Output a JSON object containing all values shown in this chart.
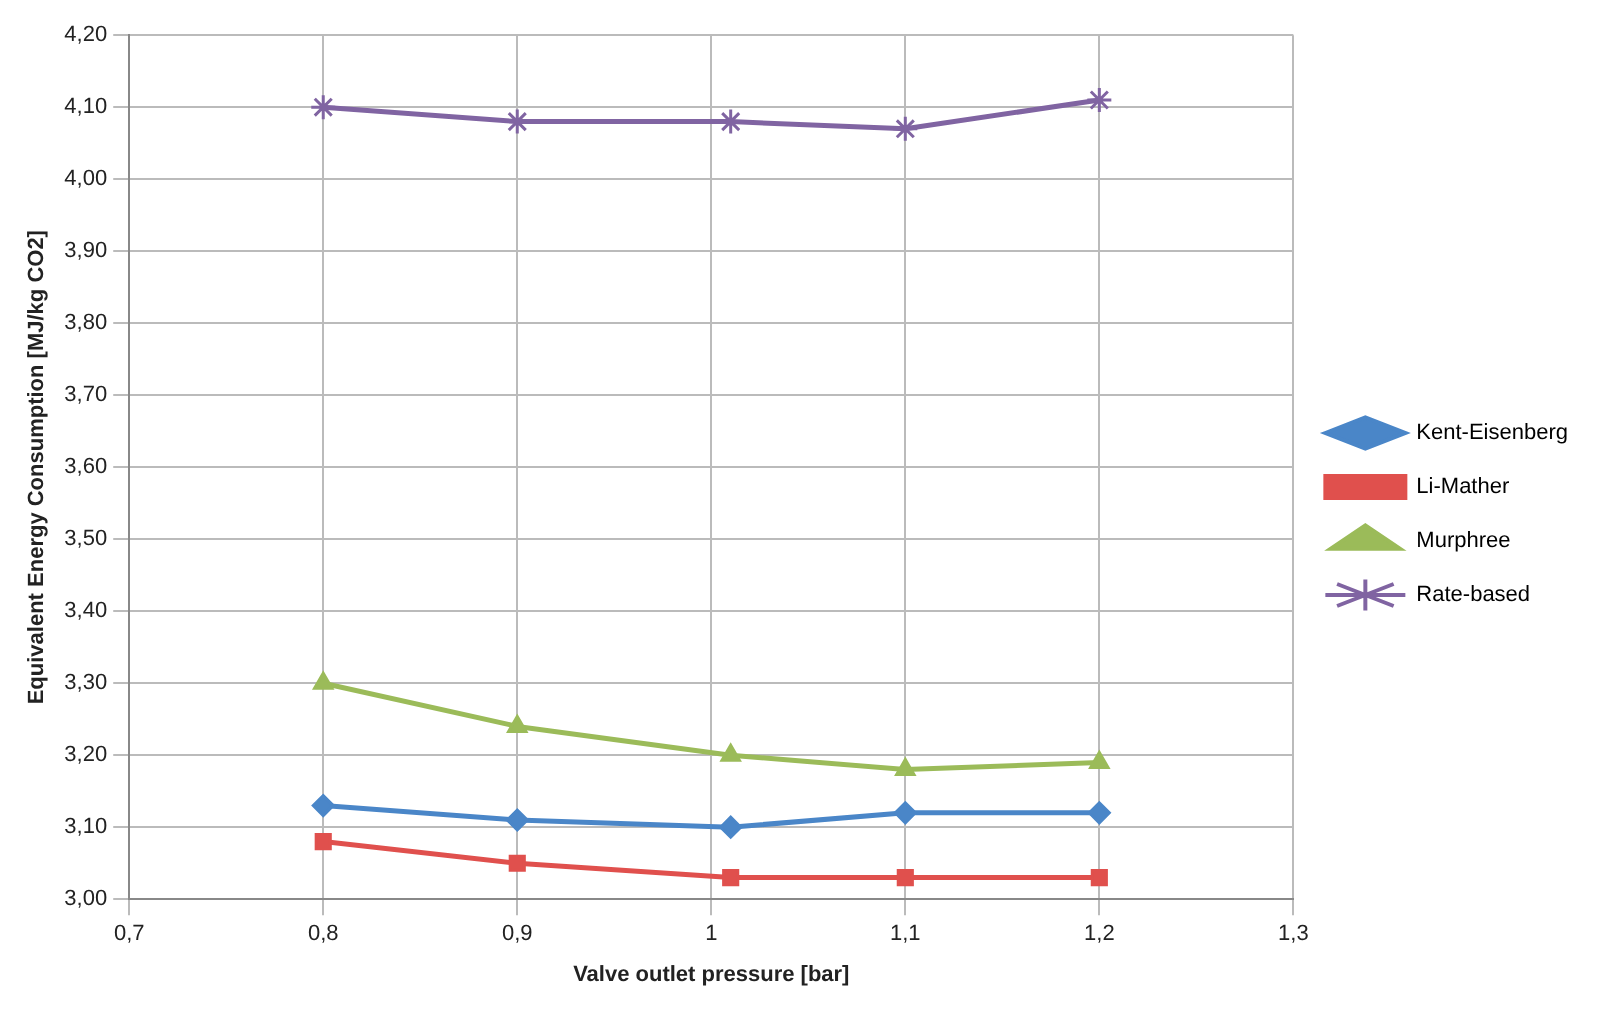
{
  "chart_data": {
    "type": "line",
    "xlabel": "Valve outlet pressure [bar]",
    "ylabel": "Equivalent Energy Consumption [MJ/kg CO2]",
    "x": [
      0.8,
      0.9,
      1.01,
      1.1,
      1.2
    ],
    "series": [
      {
        "name": "Kent-Eisenberg",
        "color": "#4a86c8",
        "marker": "diamond",
        "values": [
          3.13,
          3.11,
          3.1,
          3.12,
          3.12
        ]
      },
      {
        "name": "Li-Mather",
        "color": "#e0504d",
        "marker": "square",
        "values": [
          3.08,
          3.05,
          3.03,
          3.03,
          3.03
        ]
      },
      {
        "name": "Murphree",
        "color": "#9bbb59",
        "marker": "triangle",
        "values": [
          3.3,
          3.24,
          3.2,
          3.18,
          3.19
        ]
      },
      {
        "name": "Rate-based",
        "color": "#8064a2",
        "marker": "cross",
        "values": [
          4.1,
          4.08,
          4.08,
          4.07,
          4.11
        ]
      }
    ],
    "xlim": [
      0.7,
      1.3
    ],
    "xticks": [
      {
        "value": 0.7,
        "label": "0,7"
      },
      {
        "value": 0.8,
        "label": "0,8"
      },
      {
        "value": 0.9,
        "label": "0,9"
      },
      {
        "value": 1,
        "label": "1"
      },
      {
        "value": 1.1,
        "label": "1,1"
      },
      {
        "value": 1.2,
        "label": "1,2"
      },
      {
        "value": 1.3,
        "label": "1,3"
      }
    ],
    "ylim": [
      3.0,
      4.2
    ],
    "yticks": [
      {
        "value": 3.0,
        "label": "3,00"
      },
      {
        "value": 3.1,
        "label": "3,10"
      },
      {
        "value": 3.2,
        "label": "3,20"
      },
      {
        "value": 3.3,
        "label": "3,30"
      },
      {
        "value": 3.4,
        "label": "3,40"
      },
      {
        "value": 3.5,
        "label": "3,50"
      },
      {
        "value": 3.6,
        "label": "3,60"
      },
      {
        "value": 3.7,
        "label": "3,70"
      },
      {
        "value": 3.8,
        "label": "3,80"
      },
      {
        "value": 3.9,
        "label": "3,90"
      },
      {
        "value": 4.0,
        "label": "4,00"
      },
      {
        "value": 4.1,
        "label": "4,10"
      },
      {
        "value": 4.2,
        "label": "4,20"
      }
    ],
    "grid": true,
    "legend": "right"
  }
}
